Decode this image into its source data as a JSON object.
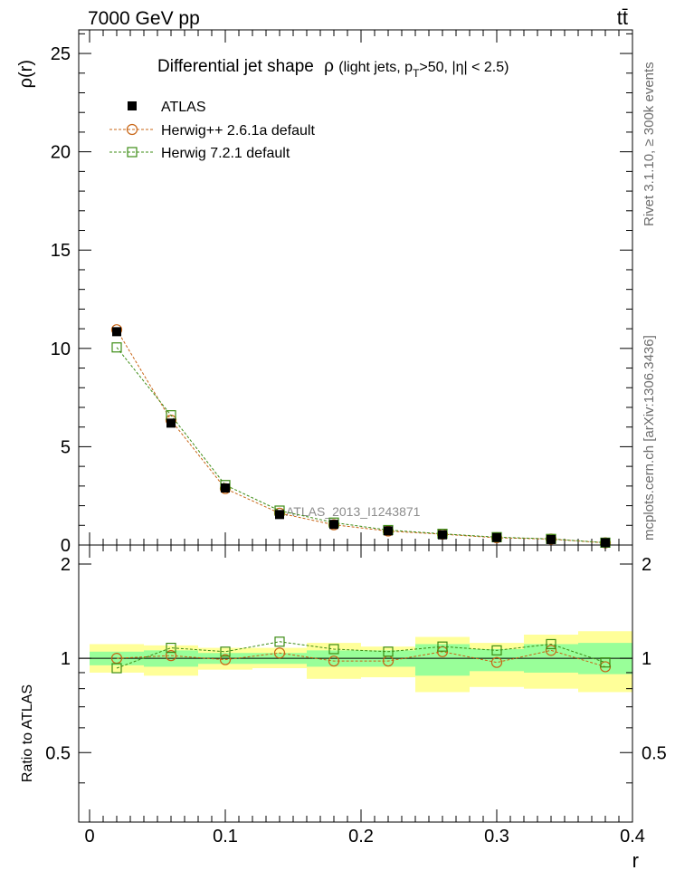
{
  "header": {
    "left": "7000 GeV pp",
    "right": "tt̄"
  },
  "side_labels": {
    "rivet": "Rivet 3.1.10, ≥ 300k events",
    "mcplots": "mcplots.cern.ch [arXiv:1306.3436]"
  },
  "chart_data": [
    {
      "type": "scatter",
      "title": "Differential jet shape  ρ (light jets, pT>50, |η| < 2.5)",
      "xlabel": "",
      "ylabel": "ρ(r)",
      "xlim": [
        -0.008,
        0.4
      ],
      "ylim": [
        0,
        26.2
      ],
      "yticks": [
        0,
        5,
        10,
        15,
        20,
        25
      ],
      "watermark": "ATLAS_2013_I1243871",
      "legend_position": "top-left",
      "x": [
        0.02,
        0.06,
        0.1,
        0.14,
        0.18,
        0.22,
        0.26,
        0.3,
        0.34,
        0.38
      ],
      "series": [
        {
          "name": "ATLAS",
          "color": "#000000",
          "marker": "filled-square",
          "values": [
            10.85,
            6.2,
            2.9,
            1.55,
            1.05,
            0.72,
            0.52,
            0.38,
            0.28,
            0.12
          ]
        },
        {
          "name": "Herwig++ 2.6.1a default",
          "color": "#c86414",
          "marker": "open-circle",
          "line": "dashed",
          "values": [
            10.95,
            6.35,
            2.87,
            1.62,
            1.03,
            0.71,
            0.55,
            0.37,
            0.3,
            0.11
          ]
        },
        {
          "name": "Herwig 7.2.1 default",
          "color": "#3c8c14",
          "marker": "open-square",
          "line": "dashed",
          "values": [
            10.05,
            6.6,
            3.05,
            1.75,
            1.14,
            0.76,
            0.57,
            0.4,
            0.31,
            0.12
          ]
        }
      ]
    },
    {
      "type": "scatter",
      "xlabel": "r",
      "ylabel": "Ratio to ATLAS",
      "xlim": [
        -0.008,
        0.4
      ],
      "ylim": [
        0.3,
        2.3
      ],
      "yticks": [
        0.5,
        1,
        2
      ],
      "xticks": [
        0,
        0.1,
        0.2,
        0.3,
        0.4
      ],
      "x": [
        0.02,
        0.06,
        0.1,
        0.14,
        0.18,
        0.22,
        0.26,
        0.3,
        0.34,
        0.38
      ],
      "bin_edges": [
        0.0,
        0.04,
        0.08,
        0.12,
        0.16,
        0.2,
        0.24,
        0.28,
        0.32,
        0.36,
        0.4
      ],
      "band_yellow": {
        "color": "#ffff99",
        "lo": [
          0.9,
          0.88,
          0.92,
          0.93,
          0.86,
          0.87,
          0.78,
          0.81,
          0.8,
          0.78
        ],
        "hi": [
          1.11,
          1.1,
          1.08,
          1.08,
          1.12,
          1.09,
          1.17,
          1.12,
          1.19,
          1.22
        ]
      },
      "band_green": {
        "color": "#99ff99",
        "lo": [
          0.95,
          0.94,
          0.96,
          0.96,
          0.94,
          0.94,
          0.88,
          0.91,
          0.9,
          0.89
        ],
        "hi": [
          1.05,
          1.06,
          1.04,
          1.04,
          1.06,
          1.06,
          1.11,
          1.07,
          1.11,
          1.12
        ]
      },
      "series": [
        {
          "name": "Herwig++ 2.6.1a default",
          "color": "#c86414",
          "marker": "open-circle",
          "values": [
            1.0,
            1.02,
            0.99,
            1.04,
            0.98,
            0.98,
            1.05,
            0.97,
            1.06,
            0.94
          ]
        },
        {
          "name": "Herwig 7.2.1 default",
          "color": "#3c8c14",
          "marker": "open-square",
          "values": [
            0.93,
            1.08,
            1.05,
            1.13,
            1.07,
            1.05,
            1.09,
            1.06,
            1.11,
            0.97
          ]
        }
      ]
    }
  ]
}
